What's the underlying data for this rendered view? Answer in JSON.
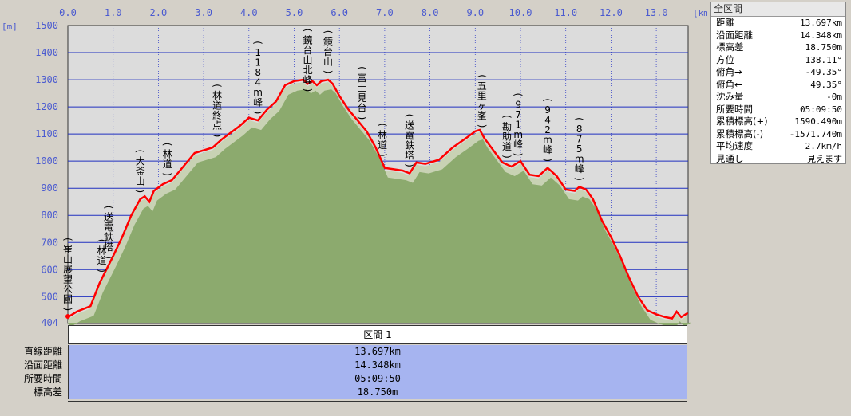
{
  "chart_data": {
    "type": "area",
    "xunit": "[km]",
    "yunit": "[m]",
    "xlim": [
      0,
      13.697
    ],
    "ylim": [
      404,
      1500
    ],
    "x_ticks": [
      "0.0",
      "1.0",
      "2.0",
      "3.0",
      "4.0",
      "5.0",
      "6.0",
      "7.0",
      "8.0",
      "9.0",
      "10.0",
      "11.0",
      "12.0",
      "13.0"
    ],
    "y_ticks": [
      "1500",
      "1400",
      "1300",
      "1200",
      "1100",
      "1000",
      "900",
      "800",
      "700",
      "600",
      "500",
      "404"
    ],
    "grid": true,
    "series": [
      {
        "name": "",
        "color": "#ff0000",
        "x": [
          0,
          0.2,
          0.5,
          0.7,
          0.85,
          1.0,
          1.2,
          1.4,
          1.6,
          1.7,
          1.8,
          1.9,
          2.1,
          2.3,
          2.5,
          2.8,
          3.2,
          3.4,
          3.8,
          4.0,
          4.2,
          4.4,
          4.6,
          4.8,
          5.0,
          5.2,
          5.3,
          5.4,
          5.5,
          5.6,
          5.75,
          5.85,
          6.0,
          6.2,
          6.4,
          6.6,
          6.8,
          7.0,
          7.2,
          7.4,
          7.55,
          7.7,
          7.9,
          8.2,
          8.5,
          8.8,
          9.0,
          9.1,
          9.2,
          9.4,
          9.6,
          9.8,
          10.0,
          10.2,
          10.4,
          10.6,
          10.8,
          11.0,
          11.2,
          11.3,
          11.45,
          11.6,
          11.8,
          12.0,
          12.2,
          12.4,
          12.6,
          12.8,
          13.0,
          13.2,
          13.35,
          13.45,
          13.55,
          13.697
        ],
        "y": [
          425,
          445,
          465,
          550,
          600,
          650,
          720,
          800,
          860,
          870,
          850,
          890,
          915,
          930,
          970,
          1030,
          1050,
          1080,
          1130,
          1160,
          1150,
          1190,
          1220,
          1280,
          1295,
          1300,
          1285,
          1295,
          1280,
          1295,
          1300,
          1285,
          1240,
          1190,
          1150,
          1110,
          1050,
          975,
          970,
          965,
          955,
          995,
          990,
          1005,
          1050,
          1085,
          1110,
          1115,
          1085,
          1040,
          995,
          980,
          1000,
          950,
          945,
          975,
          945,
          895,
          890,
          905,
          895,
          860,
          780,
          720,
          650,
          570,
          500,
          450,
          435,
          425,
          420,
          445,
          425,
          440
        ]
      }
    ],
    "peak_labels": [
      {
        "x": 0.0,
        "text": "崔山展望公園",
        "paren": true
      },
      {
        "x": 0.75,
        "text": "林道",
        "paren": true
      },
      {
        "x": 0.9,
        "text": "送電鉄塔",
        "paren": true
      },
      {
        "x": 1.6,
        "text": "大釜山",
        "paren": true
      },
      {
        "x": 2.2,
        "text": "林道",
        "paren": true
      },
      {
        "x": 3.3,
        "text": "林道終点",
        "paren": true
      },
      {
        "x": 4.2,
        "text": "1184m峰",
        "paren": true
      },
      {
        "x": 5.3,
        "text": "鏡台山北峰",
        "paren": true
      },
      {
        "x": 5.75,
        "text": "鏡台山",
        "paren": true
      },
      {
        "x": 6.5,
        "text": "富士見台",
        "paren": true
      },
      {
        "x": 6.95,
        "text": "林道",
        "paren": true
      },
      {
        "x": 7.55,
        "text": "送電鉄塔",
        "paren": true
      },
      {
        "x": 9.15,
        "text": "五里ヶ峯",
        "paren": true
      },
      {
        "x": 9.7,
        "text": "勘助道",
        "paren": true
      },
      {
        "x": 9.95,
        "text": "971m峰",
        "paren": true
      },
      {
        "x": 10.6,
        "text": "942m峰",
        "paren": true
      },
      {
        "x": 11.3,
        "text": "875m峰",
        "paren": true
      }
    ]
  },
  "section": {
    "header": "区間 1",
    "rows": [
      {
        "label": "直線距離",
        "value": "13.697km"
      },
      {
        "label": "沿面距離",
        "value": "14.348km"
      },
      {
        "label": "所要時間",
        "value": "05:09:50"
      },
      {
        "label": "標高差",
        "value": "18.750m"
      }
    ]
  },
  "summary": {
    "title": "全区間",
    "rows": [
      {
        "label": "距離",
        "value": "13.697km"
      },
      {
        "label": "沿面距離",
        "value": "14.348km"
      },
      {
        "label": "標高差",
        "value": "18.750m"
      },
      {
        "label": "方位",
        "value": "138.11°"
      },
      {
        "label": "俯角→",
        "value": "-49.35°"
      },
      {
        "label": "俯角←",
        "value": "49.35°"
      },
      {
        "label": "沈み量",
        "value": "-0m"
      },
      {
        "label": "所要時間",
        "value": "05:09:50"
      },
      {
        "label": "累積標高(+)",
        "value": "1590.490m"
      },
      {
        "label": "累積標高(-)",
        "value": "-1571.740m"
      },
      {
        "label": "平均速度",
        "value": "2.7km/h"
      },
      {
        "label": "見通し",
        "value": "見えます"
      }
    ]
  }
}
